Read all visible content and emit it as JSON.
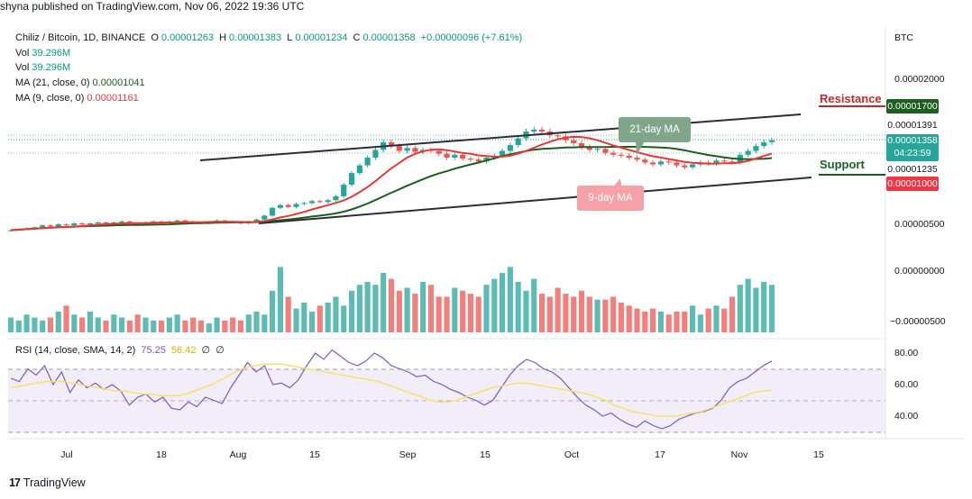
{
  "publisher": "shyna published on TradingView.com, Nov 06, 2022 19:36 UTC",
  "footer": {
    "brand": "TradingView",
    "logo_glyph": "17"
  },
  "legend": {
    "symbol": "Chiliz / Bitcoin, 1D, BINANCE",
    "o_label": "O",
    "o": "0.00001263",
    "h_label": "H",
    "h": "0.00001383",
    "l_label": "L",
    "l": "0.00001234",
    "c_label": "C",
    "c": "0.00001358",
    "change": "+0.00000096 (+7.61%)",
    "vol1_label": "Vol",
    "vol1": "39.296M",
    "vol2_label": "Vol",
    "vol2": "39.296M",
    "ma21_label": "MA (21, close, 0)",
    "ma21": "0.00001041",
    "ma9_label": "MA (9, close, 0)",
    "ma9": "0.00001161",
    "rsi_label": "RSI (14, close, SMA, 14, 2)",
    "rsi": "75.25",
    "rsi_sma": "56.42",
    "rsi_x1": "∅",
    "rsi_x2": "∅"
  },
  "currency": "BTC",
  "price_axis": [
    "0.00002000",
    "0.00000500",
    "0.00000000",
    "−0.00000500"
  ],
  "price_tags": [
    {
      "value": "0.00001700",
      "color": "#1b5e20"
    },
    {
      "value": "0.00001391",
      "color": "#ffffff"
    },
    {
      "value": "0.00001358",
      "color": "#26a69a",
      "countdown": "04:23:59"
    },
    {
      "value": "0.00001235",
      "color": "#ffffff"
    },
    {
      "value": "0.00001000",
      "color": "#f23645"
    }
  ],
  "rsi_axis": [
    "80.00",
    "60.00",
    "40.00"
  ],
  "x_axis": [
    "Jul",
    "18",
    "Aug",
    "15",
    "Sep",
    "15",
    "Oct",
    "17",
    "Nov",
    "15"
  ],
  "annotations": {
    "resistance": "Resistance",
    "support": "Support",
    "ma21_callout": "21-day MA",
    "ma9_callout": "9-day MA"
  },
  "colors": {
    "up": "#26a69a",
    "down": "#ef5350",
    "ma9": "#e53935",
    "ma21": "#1b5e20",
    "rsi": "#7e57c2",
    "rsi_sma": "#f5e16a",
    "resistance": "#c62828",
    "support": "#1b5e20"
  },
  "chart_data": {
    "type": "candlestick",
    "close": [
      4.3e-06,
      4.4e-06,
      4.5e-06,
      4.6e-06,
      4.8e-06,
      4.7e-06,
      4.9e-06,
      4.8e-06,
      5e-06,
      4.9e-06,
      5e-06,
      5.1e-06,
      5e-06,
      5.1e-06,
      5.2e-06,
      5e-06,
      4.9e-06,
      5.1e-06,
      5.2e-06,
      5.1e-06,
      5.2e-06,
      5.3e-06,
      5.2e-06,
      5.1e-06,
      5e-06,
      5.1e-06,
      5.3e-06,
      5.2e-06,
      5.1e-06,
      5e-06,
      5.2e-06,
      5.4e-06,
      5.8e-06,
      6.6e-06,
      6.9e-06,
      6.7e-06,
      7e-06,
      7.1e-06,
      7.3e-06,
      7.2e-06,
      7.4e-06,
      7.8e-06,
      9e-06,
      1.02e-05,
      1.1e-05,
      1.18e-05,
      1.26e-05,
      1.34e-05,
      1.3e-05,
      1.25e-05,
      1.28e-05,
      1.24e-05,
      1.26e-05,
      1.25e-05,
      1.22e-05,
      1.18e-05,
      1.21e-05,
      1.17e-05,
      1.16e-05,
      1.14e-05,
      1.18e-05,
      1.2e-05,
      1.25e-05,
      1.31e-05,
      1.38e-05,
      1.45e-05,
      1.47e-05,
      1.45e-05,
      1.41e-05,
      1.4e-05,
      1.36e-05,
      1.33e-05,
      1.29e-05,
      1.26e-05,
      1.27e-05,
      1.23e-05,
      1.21e-05,
      1.2e-05,
      1.18e-05,
      1.16e-05,
      1.13e-05,
      1.11e-05,
      1.14e-05,
      1.13e-05,
      1.1e-05,
      1.08e-05,
      1.11e-05,
      1.13e-05,
      1.12e-05,
      1.15e-05,
      1.14e-05,
      1.13e-05,
      1.21e-05,
      1.25e-05,
      1.3e-05,
      1.34e-05,
      1.36e-05
    ],
    "volume": [
      5,
      4,
      6,
      5,
      4,
      5,
      7,
      9,
      6,
      5,
      7,
      5,
      4,
      6,
      5,
      4,
      6,
      5,
      4,
      4,
      5,
      6,
      4,
      5,
      4,
      3,
      5,
      4,
      5,
      4,
      6,
      7,
      6,
      14,
      22,
      12,
      8,
      10,
      7,
      9,
      10,
      12,
      9,
      14,
      16,
      17,
      16,
      20,
      18,
      14,
      15,
      13,
      17,
      16,
      12,
      12,
      15,
      14,
      13,
      12,
      16,
      18,
      20,
      22,
      17,
      14,
      18,
      13,
      12,
      15,
      13,
      12,
      14,
      12,
      11,
      11,
      12,
      10,
      9,
      8,
      7,
      8,
      7,
      6,
      7,
      7,
      9,
      6,
      8,
      9,
      8,
      12,
      16,
      18,
      15,
      17,
      16
    ],
    "rsi": [
      64,
      62,
      70,
      66,
      72,
      60,
      68,
      55,
      63,
      58,
      61,
      57,
      60,
      56,
      47,
      52,
      54,
      49,
      52,
      45,
      44,
      49,
      46,
      52,
      50,
      48,
      58,
      66,
      74,
      68,
      72,
      60,
      61,
      58,
      63,
      72,
      80,
      76,
      82,
      78,
      74,
      72,
      75,
      80,
      77,
      72,
      70,
      68,
      65,
      66,
      62,
      60,
      57,
      55,
      52,
      50,
      47,
      50,
      58,
      66,
      72,
      76,
      74,
      70,
      68,
      64,
      58,
      52,
      47,
      44,
      40,
      42,
      38,
      35,
      33,
      37,
      34,
      32,
      34,
      38,
      40,
      42,
      43,
      45,
      50,
      58,
      62,
      64,
      68,
      72,
      75
    ],
    "rsi_sma": [
      58,
      59,
      60,
      61,
      62,
      62,
      62,
      61,
      60,
      59,
      58,
      57,
      56,
      56,
      55,
      54,
      54,
      53,
      53,
      53,
      54,
      56,
      58,
      60,
      63,
      66,
      69,
      71,
      72,
      73,
      73,
      73,
      72,
      71,
      70,
      69,
      68,
      67,
      66,
      65,
      64,
      63,
      62,
      60,
      58,
      56,
      54,
      52,
      50,
      49,
      49,
      50,
      52,
      54,
      56,
      58,
      59,
      60,
      61,
      61,
      60,
      59,
      58,
      57,
      56,
      55,
      54,
      52,
      50,
      47,
      45,
      43,
      42,
      41,
      40,
      40,
      40,
      41,
      42,
      43,
      45,
      47,
      49,
      51,
      53,
      55,
      56,
      56.42
    ]
  }
}
